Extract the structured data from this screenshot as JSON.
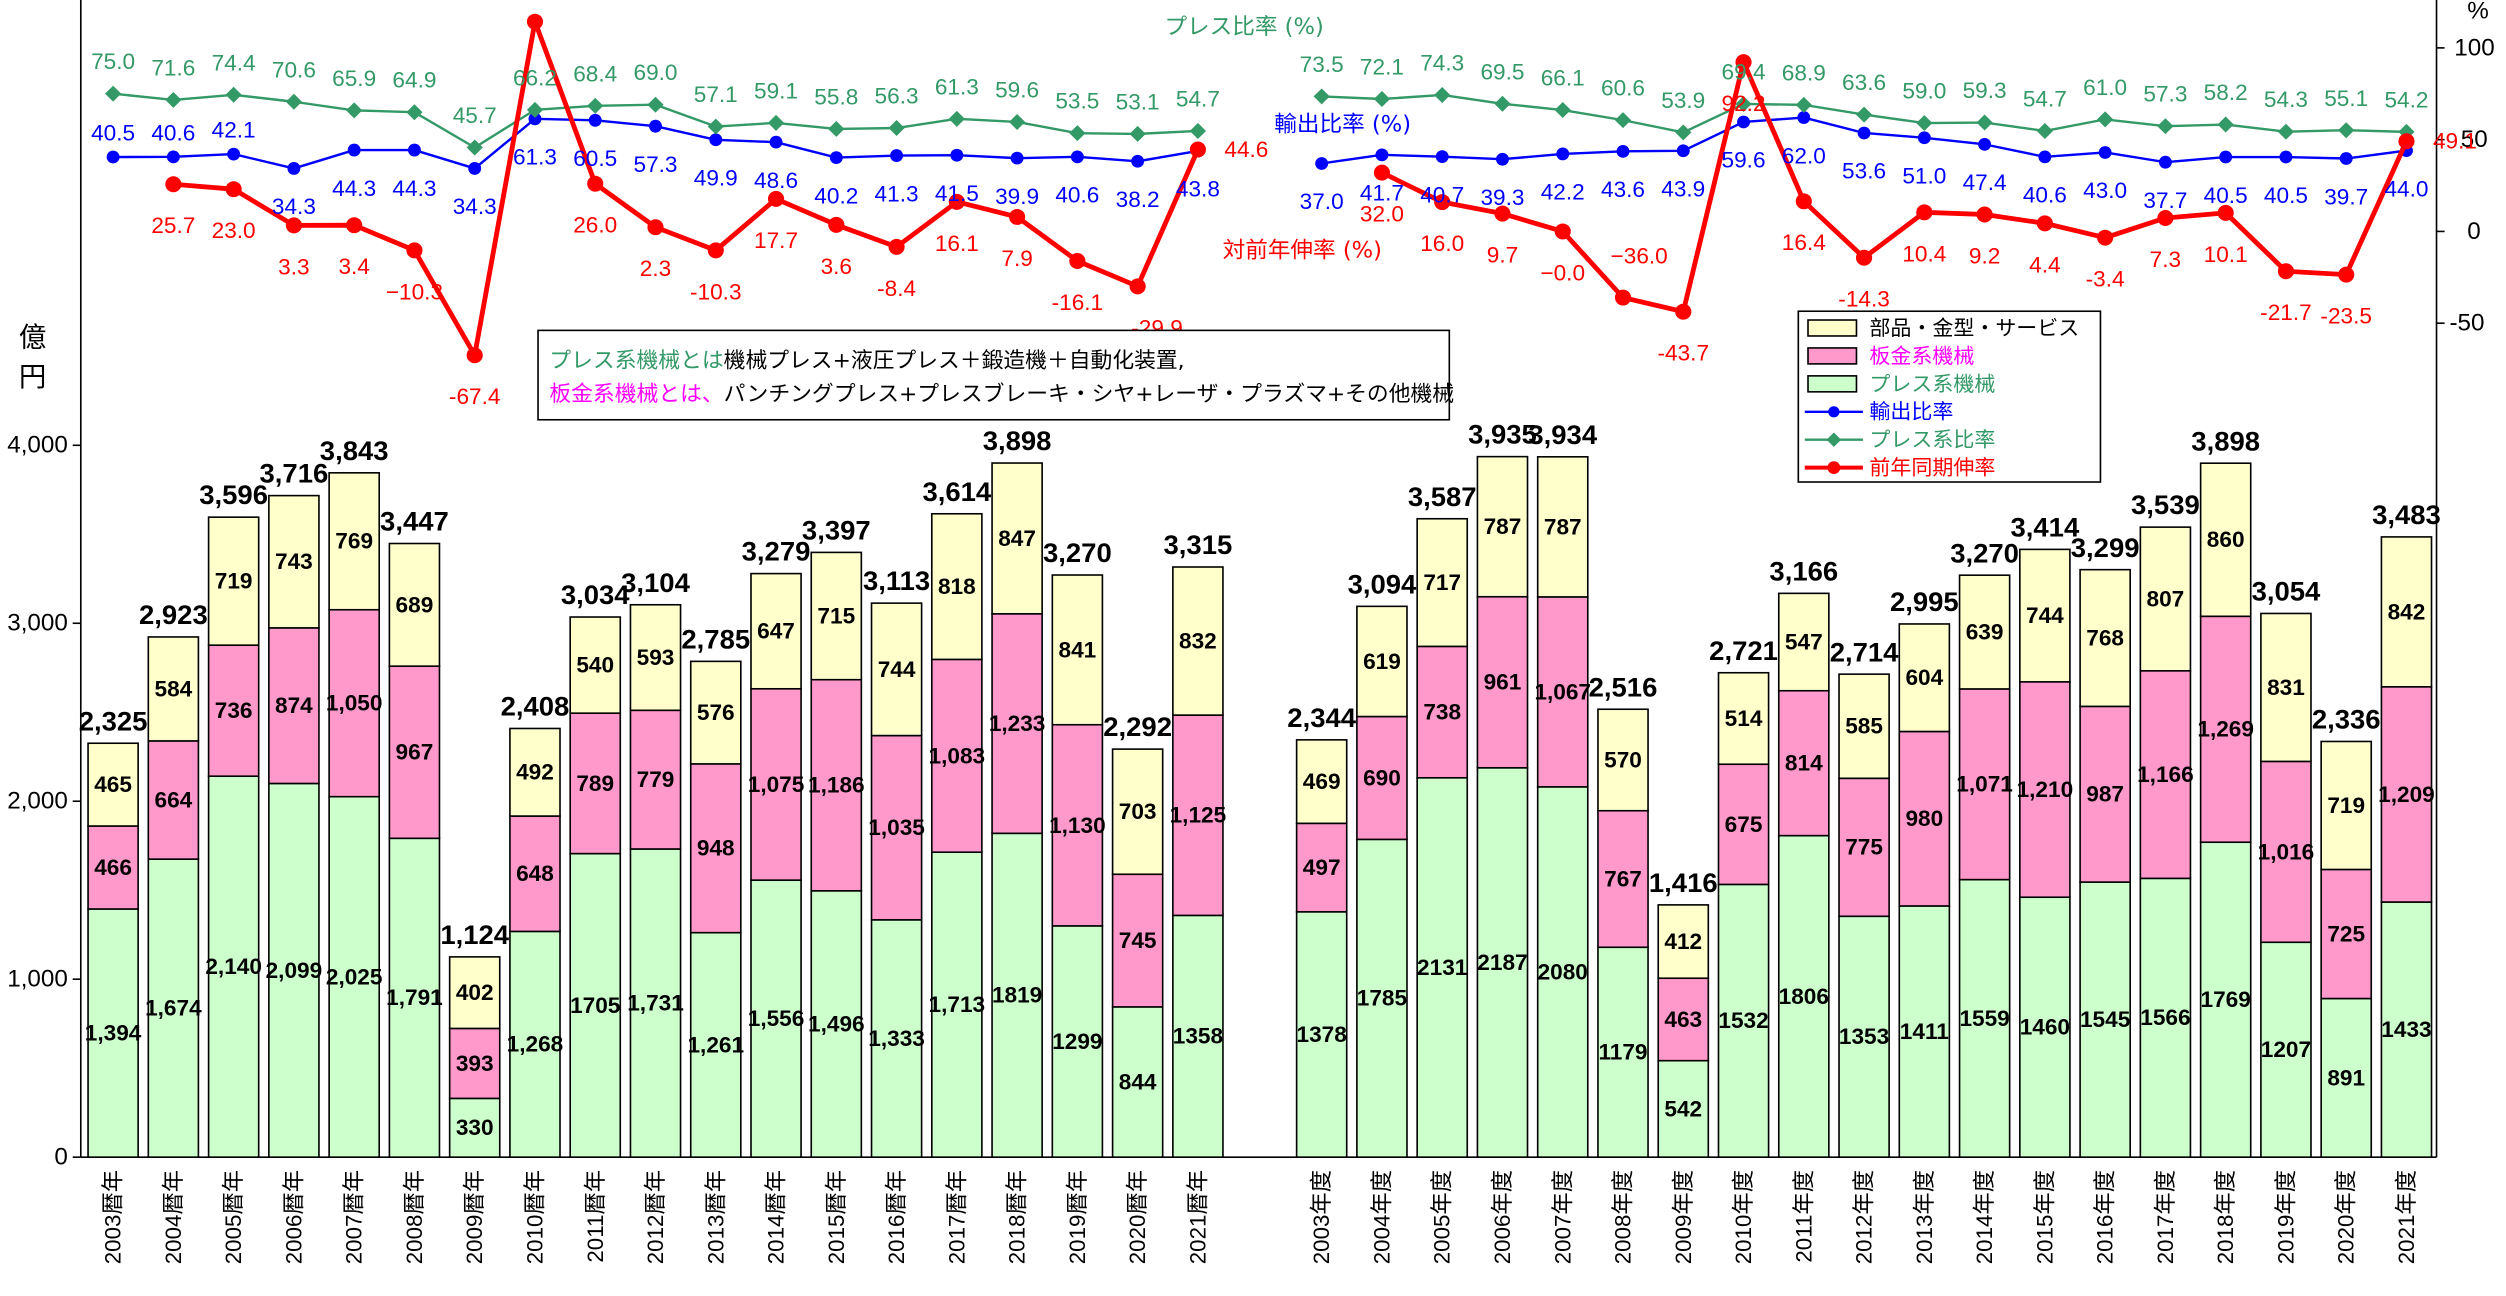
{
  "chart_data": {
    "type": "bar",
    "left_axis": {
      "label": "億円",
      "ticks": [
        "0",
        "1,000",
        "2,000",
        "3,000",
        "4,000"
      ],
      "tick_values": [
        0,
        1000,
        2000,
        3000,
        4000
      ],
      "ylim": [
        0,
        6500
      ]
    },
    "right_axis": {
      "unit": "%",
      "ticks": [
        "100",
        "50",
        "0",
        "-50"
      ],
      "tick_values": [
        100,
        50,
        0,
        -50
      ],
      "ylim": [
        -504,
        126
      ]
    },
    "grid": false,
    "stack_series": [
      {
        "key": "press",
        "name": "プレス系機械",
        "color": "#CCFFCC"
      },
      {
        "key": "sheet",
        "name": "板金系機械",
        "color": "#FF99CC"
      },
      {
        "key": "parts",
        "name": "部品・金型・サービス",
        "color": "#FFFFCC"
      }
    ],
    "line_series": [
      {
        "key": "export_ratio",
        "name": "輸出比率",
        "title": "輸出比率 (%)",
        "color": "#0000FF",
        "marker": "circle"
      },
      {
        "key": "press_ratio",
        "name": "プレス系比率",
        "title": "プレス比率 (%)",
        "color": "#339966",
        "marker": "diamond"
      },
      {
        "key": "growth",
        "name": "前年同期伸率",
        "title": "対前年伸率 (%)",
        "color": "#FF0000",
        "marker": "circle"
      }
    ],
    "groups": [
      {
        "categories": [
          "2003暦年",
          "2004暦年",
          "2005暦年",
          "2006暦年",
          "2007暦年",
          "2008暦年",
          "2009暦年",
          "2010暦年",
          "2011暦年",
          "2012暦年",
          "2013暦年",
          "2014暦年",
          "2015暦年",
          "2016暦年",
          "2017暦年",
          "2018暦年",
          "2019暦年",
          "2020暦年",
          "2021暦年"
        ],
        "press": [
          1394,
          1674,
          2140,
          2099,
          2025,
          1791,
          330,
          1268,
          1705,
          1731,
          1261,
          1556,
          1496,
          1333,
          1713,
          1819,
          1299,
          844,
          1358
        ],
        "press_labels": [
          "1,394",
          "1,674",
          "2,140",
          "2,099",
          "2,025",
          "1,791",
          "330",
          "1,268",
          "1705",
          "1,731",
          "1,261",
          "1,556",
          "1,496",
          "1,333",
          "1,713",
          "1819",
          "1299",
          "844",
          "1358"
        ],
        "sheet": [
          466,
          664,
          736,
          874,
          1050,
          967,
          393,
          648,
          789,
          779,
          948,
          1075,
          1186,
          1035,
          1083,
          1233,
          1130,
          745,
          1125
        ],
        "sheet_labels": [
          "466",
          "664",
          "736",
          "874",
          "1,050",
          "967",
          "393",
          "648",
          "789",
          "779",
          "948",
          "1,075",
          "1,186",
          "1,035",
          "1,083",
          "1,233",
          "1,130",
          "745",
          "1,125"
        ],
        "parts": [
          465,
          584,
          719,
          743,
          769,
          689,
          402,
          492,
          540,
          593,
          576,
          647,
          715,
          744,
          818,
          847,
          841,
          703,
          832
        ],
        "parts_labels": [
          "465",
          "584",
          "719",
          "743",
          "769",
          "689",
          "402",
          "492",
          "540",
          "593",
          "576",
          "647",
          "715",
          "744",
          "818",
          "847",
          "841",
          "703",
          "832"
        ],
        "totals": [
          2325,
          2923,
          3596,
          3716,
          3843,
          3447,
          1124,
          2408,
          3034,
          3104,
          2785,
          3279,
          3397,
          3113,
          3614,
          3898,
          3270,
          2292,
          3315
        ],
        "total_labels": [
          "2,325",
          "2,923",
          "3,596",
          "3,716",
          "3,843",
          "3,447",
          "1,124",
          "2,408",
          "3,034",
          "3,104",
          "2,785",
          "3,279",
          "3,397",
          "3,113",
          "3,614",
          "3,898",
          "3,270",
          "2,292",
          "3,315"
        ],
        "press_ratio": [
          75.0,
          71.6,
          74.4,
          70.6,
          65.9,
          64.9,
          45.7,
          66.2,
          68.4,
          69.0,
          57.1,
          59.1,
          55.8,
          56.3,
          61.3,
          59.6,
          53.5,
          53.1,
          54.7
        ],
        "export_ratio": [
          40.5,
          40.6,
          42.1,
          34.3,
          44.3,
          44.3,
          34.3,
          61.3,
          60.5,
          57.3,
          49.9,
          48.6,
          40.2,
          41.3,
          41.5,
          39.9,
          40.6,
          38.2,
          43.8
        ],
        "growth": [
          null,
          25.7,
          23.0,
          3.3,
          3.4,
          -10.3,
          -67.4,
          114.2,
          26.0,
          2.3,
          -10.3,
          17.7,
          3.6,
          -8.4,
          16.1,
          7.9,
          -16.1,
          -29.9,
          44.6
        ],
        "growth_labels": [
          "",
          "25.7",
          "23.0",
          "3.3",
          "3.4",
          "−10.3",
          "-67.4",
          "",
          "26.0",
          "2.3",
          "-10.3",
          "17.7",
          "3.6",
          "-8.4",
          "16.1",
          "7.9",
          "-16.1",
          "-29.9",
          "44.6"
        ]
      },
      {
        "categories": [
          "2003年度",
          "2004年度",
          "2005年度",
          "2006年度",
          "2007年度",
          "2008年度",
          "2009年度",
          "2010年度",
          "2011年度",
          "2012年度",
          "2013年度",
          "2014年度",
          "2015年度",
          "2016年度",
          "2017年度",
          "2018年度",
          "2019年度",
          "2020年度",
          "2021年度"
        ],
        "press": [
          1378,
          1785,
          2131,
          2187,
          2080,
          1179,
          542,
          1532,
          1806,
          1353,
          1411,
          1559,
          1460,
          1545,
          1566,
          1769,
          1207,
          891,
          1433
        ],
        "press_labels": [
          "1378",
          "1785",
          "2131",
          "2187",
          "2080",
          "1179",
          "542",
          "1532",
          "1806",
          "1353",
          "1411",
          "1559",
          "1460",
          "1545",
          "1566",
          "1769",
          "1207",
          "891",
          "1433"
        ],
        "sheet": [
          497,
          690,
          738,
          961,
          1067,
          767,
          463,
          675,
          814,
          775,
          980,
          1071,
          1210,
          987,
          1166,
          1269,
          1016,
          725,
          1209
        ],
        "sheet_labels": [
          "497",
          "690",
          "738",
          "961",
          "1,067",
          "767",
          "463",
          "675",
          "814",
          "775",
          "980",
          "1,071",
          "1,210",
          "987",
          "1,166",
          "1,269",
          "1,016",
          "725",
          "1,209"
        ],
        "parts": [
          469,
          619,
          717,
          787,
          787,
          570,
          412,
          514,
          547,
          585,
          604,
          639,
          744,
          768,
          807,
          860,
          831,
          719,
          842
        ],
        "parts_labels": [
          "469",
          "619",
          "717",
          "787",
          "787",
          "570",
          "412",
          "514",
          "547",
          "585",
          "604",
          "639",
          "744",
          "768",
          "807",
          "860",
          "831",
          "719",
          "842"
        ],
        "totals": [
          2344,
          3094,
          3587,
          3935,
          3934,
          2516,
          1416,
          2721,
          3166,
          2714,
          2995,
          3270,
          3414,
          3299,
          3539,
          3898,
          3054,
          2336,
          3483
        ],
        "total_labels": [
          "2,344",
          "3,094",
          "3,587",
          "3,935",
          "3,934",
          "2,516",
          "1,416",
          "2,721",
          "3,166",
          "2,714",
          "2,995",
          "3,270",
          "3,414",
          "3,299",
          "3,539",
          "3,898",
          "3,054",
          "2,336",
          "3,483"
        ],
        "press_ratio": [
          73.5,
          72.1,
          74.3,
          69.5,
          66.1,
          60.6,
          53.9,
          69.4,
          68.9,
          63.6,
          59.0,
          59.3,
          54.7,
          61.0,
          57.3,
          58.2,
          54.3,
          55.1,
          54.2
        ],
        "export_ratio": [
          37.0,
          41.7,
          40.7,
          39.3,
          42.2,
          43.6,
          43.9,
          59.6,
          62.0,
          53.6,
          51.0,
          47.4,
          40.6,
          43.0,
          37.7,
          40.5,
          40.5,
          39.7,
          44.0
        ],
        "growth": [
          null,
          32.0,
          16.0,
          9.7,
          -0.0,
          -36.0,
          -43.7,
          92.2,
          16.4,
          -14.3,
          10.4,
          9.2,
          4.4,
          -3.4,
          7.3,
          10.1,
          -21.7,
          -23.5,
          49.1
        ],
        "growth_labels": [
          "",
          "32.0",
          "16.0",
          "9.7",
          "−0.0",
          "−36.0",
          "-43.7",
          "92.2",
          "16.4",
          "-14.3",
          "10.4",
          "9.2",
          "4.4",
          "-3.4",
          "7.3",
          "10.1",
          "-21.7",
          "-23.5",
          "49.1"
        ]
      }
    ],
    "legend": {
      "placement": "right",
      "items": [
        {
          "label": "部品・金型・サービス",
          "text_color": "#000000",
          "swatch_color": "#FFFFCC"
        },
        {
          "label": "板金系機械",
          "text_color": "#FF00FF",
          "swatch_color": "#FF99CC"
        },
        {
          "label": "プレス系機械",
          "text_color": "#339966",
          "swatch_color": "#CCFFCC"
        },
        {
          "label": "輸出比率",
          "text_color": "#0000FF",
          "swatch_color": "#0000FF"
        },
        {
          "label": "プレス系比率",
          "text_color": "#339966",
          "swatch_color": "#339966"
        },
        {
          "label": "前年同期伸率",
          "text_color": "#FF0000",
          "swatch_color": "#FF0000"
        }
      ]
    },
    "note": {
      "line1": {
        "prefix": "プレス系機械とは",
        "prefix_color": "#339966",
        "text": "機械プレス+液圧プレス＋鍛造機＋自動化装置,"
      },
      "line2": {
        "prefix": "板金系機械とは、",
        "prefix_color": "#FF00FF",
        "text": "パンチングプレス+プレスブレーキ・シヤ+レーザ・プラズマ+その他機械"
      }
    }
  }
}
